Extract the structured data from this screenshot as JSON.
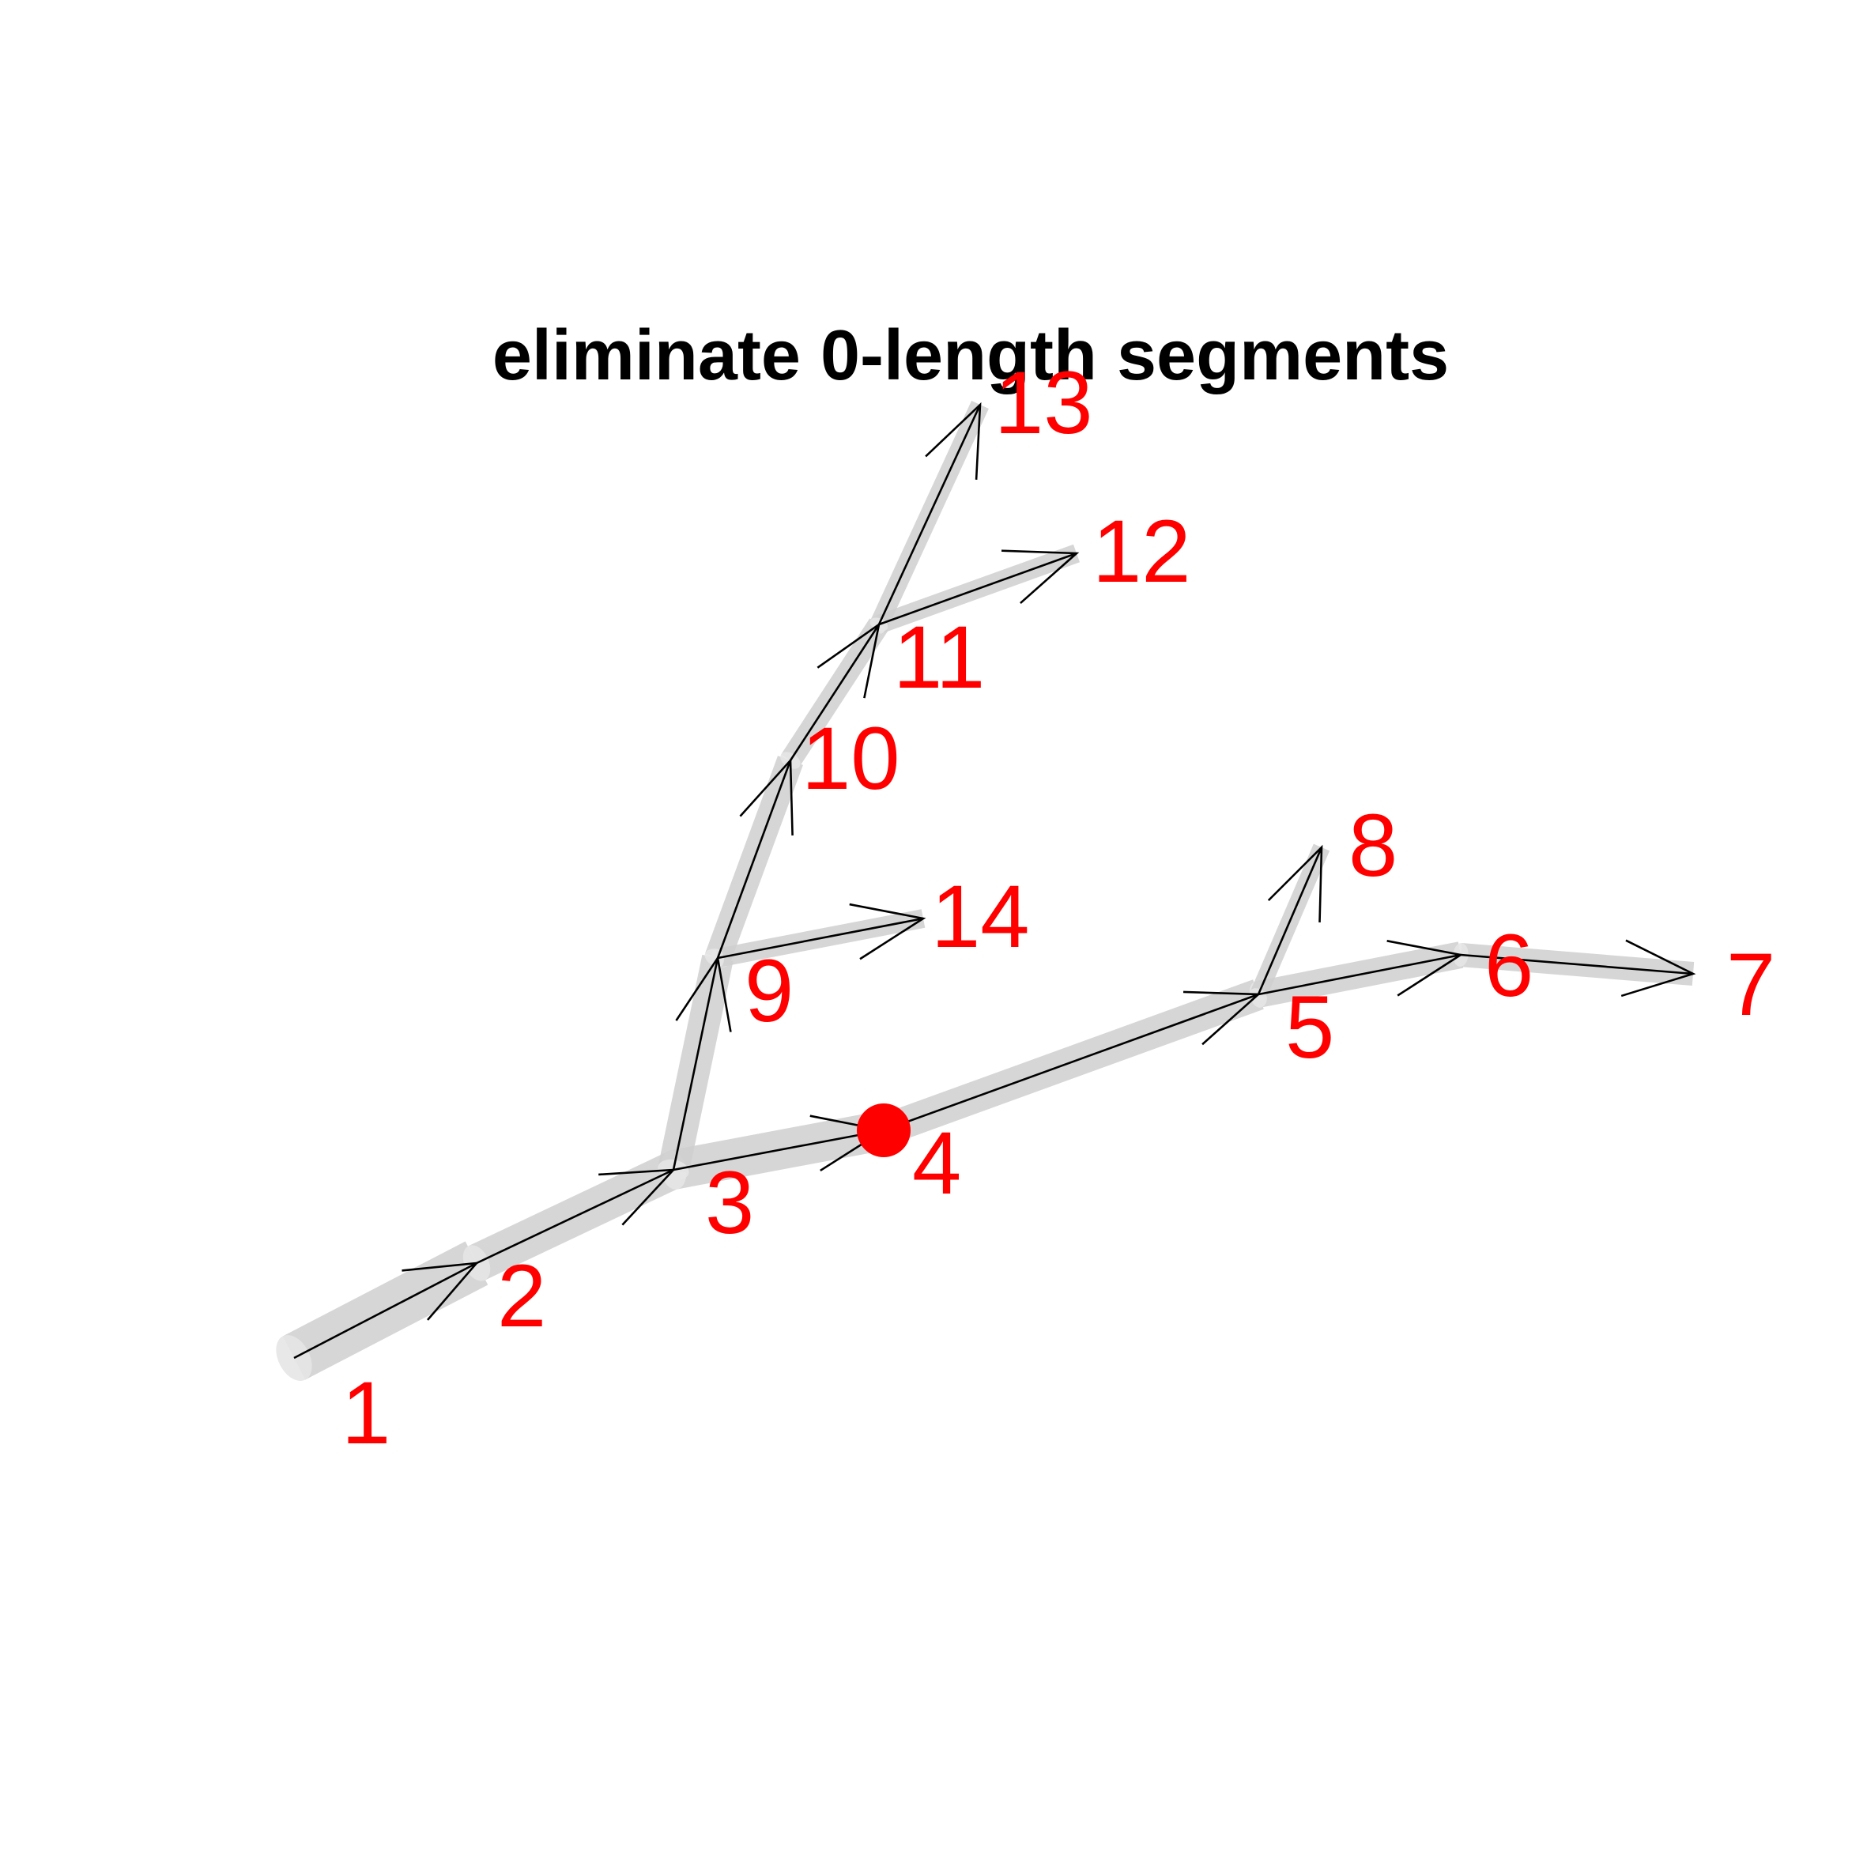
{
  "title": "eliminate 0-length segments",
  "colors": {
    "tube": "#cfcfcf",
    "tube_cap": "#e6e6e6",
    "arrow": "#000000",
    "label": "#ff0000",
    "highlight": "#ff0000",
    "background": "#ffffff"
  },
  "nodes": [
    {
      "id": "1",
      "label": "1"
    },
    {
      "id": "2",
      "label": "2"
    },
    {
      "id": "3",
      "label": "3"
    },
    {
      "id": "4",
      "label": "4",
      "highlighted": true
    },
    {
      "id": "5",
      "label": "5"
    },
    {
      "id": "6",
      "label": "6"
    },
    {
      "id": "7",
      "label": "7"
    },
    {
      "id": "8",
      "label": "8"
    },
    {
      "id": "9",
      "label": "9"
    },
    {
      "id": "10",
      "label": "10"
    },
    {
      "id": "11",
      "label": "11"
    },
    {
      "id": "12",
      "label": "12"
    },
    {
      "id": "13",
      "label": "13"
    },
    {
      "id": "14",
      "label": "14"
    }
  ],
  "edges": [
    {
      "from": "1",
      "to": "2"
    },
    {
      "from": "2",
      "to": "3"
    },
    {
      "from": "3",
      "to": "4"
    },
    {
      "from": "4",
      "to": "5"
    },
    {
      "from": "5",
      "to": "6"
    },
    {
      "from": "6",
      "to": "7"
    },
    {
      "from": "5",
      "to": "8"
    },
    {
      "from": "3",
      "to": "9"
    },
    {
      "from": "9",
      "to": "10"
    },
    {
      "from": "10",
      "to": "11"
    },
    {
      "from": "11",
      "to": "12"
    },
    {
      "from": "11",
      "to": "13"
    },
    {
      "from": "9",
      "to": "14"
    }
  ]
}
